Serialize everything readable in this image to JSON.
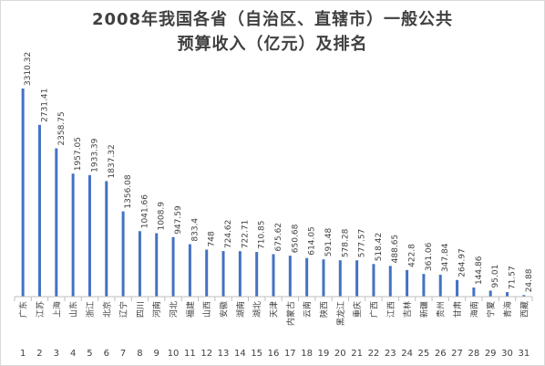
{
  "chart_data": {
    "type": "bar",
    "title_lines": [
      "2008年我国各省（自治区、直辖市）一般公共",
      "预算收入（亿元）及排名"
    ],
    "xlabel": "",
    "ylabel": "",
    "ylim": [
      0,
      3310.32
    ],
    "grid": false,
    "legend": "none",
    "bar_color": "#4472c4",
    "series": [
      {
        "values": [
          3310.32,
          2731.41,
          2358.75,
          1957.05,
          1933.39,
          1837.32,
          1356.08,
          1041.66,
          1008.9,
          947.59,
          833.4,
          748,
          724.62,
          722.71,
          710.85,
          675.62,
          650.68,
          614.05,
          591.48,
          578.28,
          577.57,
          518.42,
          488.65,
          422.8,
          361.06,
          347.84,
          264.97,
          144.86,
          95.01,
          71.57,
          24.88
        ],
        "value_labels": [
          "3310.32",
          "2731.41",
          "2358.75",
          "1957.05",
          "1933.39",
          "1837.32",
          "1356.08",
          "1041.66",
          "1008.9",
          "947.59",
          "833.4",
          "748",
          "724.62",
          "722.71",
          "710.85",
          "675.62",
          "650.68",
          "614.05",
          "591.48",
          "578.28",
          "577.57",
          "518.42",
          "488.65",
          "422.8",
          "361.06",
          "347.84",
          "264.97",
          "144.86",
          "95.01",
          "71.57",
          "24.88"
        ]
      }
    ],
    "categories": [
      "广东",
      "江苏",
      "上海",
      "山东",
      "浙江",
      "北京",
      "辽宁",
      "四川",
      "河南",
      "河北",
      "福建",
      "山西",
      "安徽",
      "湖南",
      "湖北",
      "天津",
      "内蒙古",
      "云南",
      "陕西",
      "黑龙江",
      "重庆",
      "广西",
      "江西",
      "吉林",
      "新疆",
      "贵州",
      "甘肃",
      "海南",
      "宁夏",
      "青海",
      "西藏"
    ],
    "ranks": [
      "1",
      "2",
      "3",
      "4",
      "5",
      "6",
      "7",
      "8",
      "9",
      "10",
      "11",
      "12",
      "13",
      "14",
      "15",
      "16",
      "17",
      "18",
      "19",
      "20",
      "21",
      "22",
      "23",
      "24",
      "25",
      "26",
      "27",
      "28",
      "29",
      "30",
      "31"
    ]
  }
}
